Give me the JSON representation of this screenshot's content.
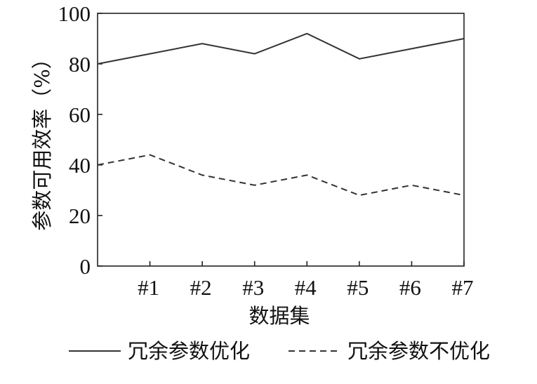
{
  "chart_data": {
    "type": "line",
    "xlabel": "数据集",
    "ylabel": "参数可用效率（%）",
    "ylim": [
      0,
      100
    ],
    "yticks": [
      0,
      20,
      40,
      60,
      80,
      100
    ],
    "categories": [
      "",
      "#1",
      "#2",
      "#3",
      "#4",
      "#5",
      "#6",
      "#7"
    ],
    "grid": false,
    "legend_position": "bottom",
    "series": [
      {
        "name": "冗余参数优化",
        "style": "solid",
        "color": "#333333",
        "values": [
          80,
          84,
          88,
          84,
          92,
          82,
          86,
          90
        ]
      },
      {
        "name": "冗余参数不优化",
        "style": "dashed",
        "color": "#333333",
        "values": [
          40,
          44,
          36,
          32,
          36,
          28,
          32,
          28
        ]
      }
    ]
  }
}
